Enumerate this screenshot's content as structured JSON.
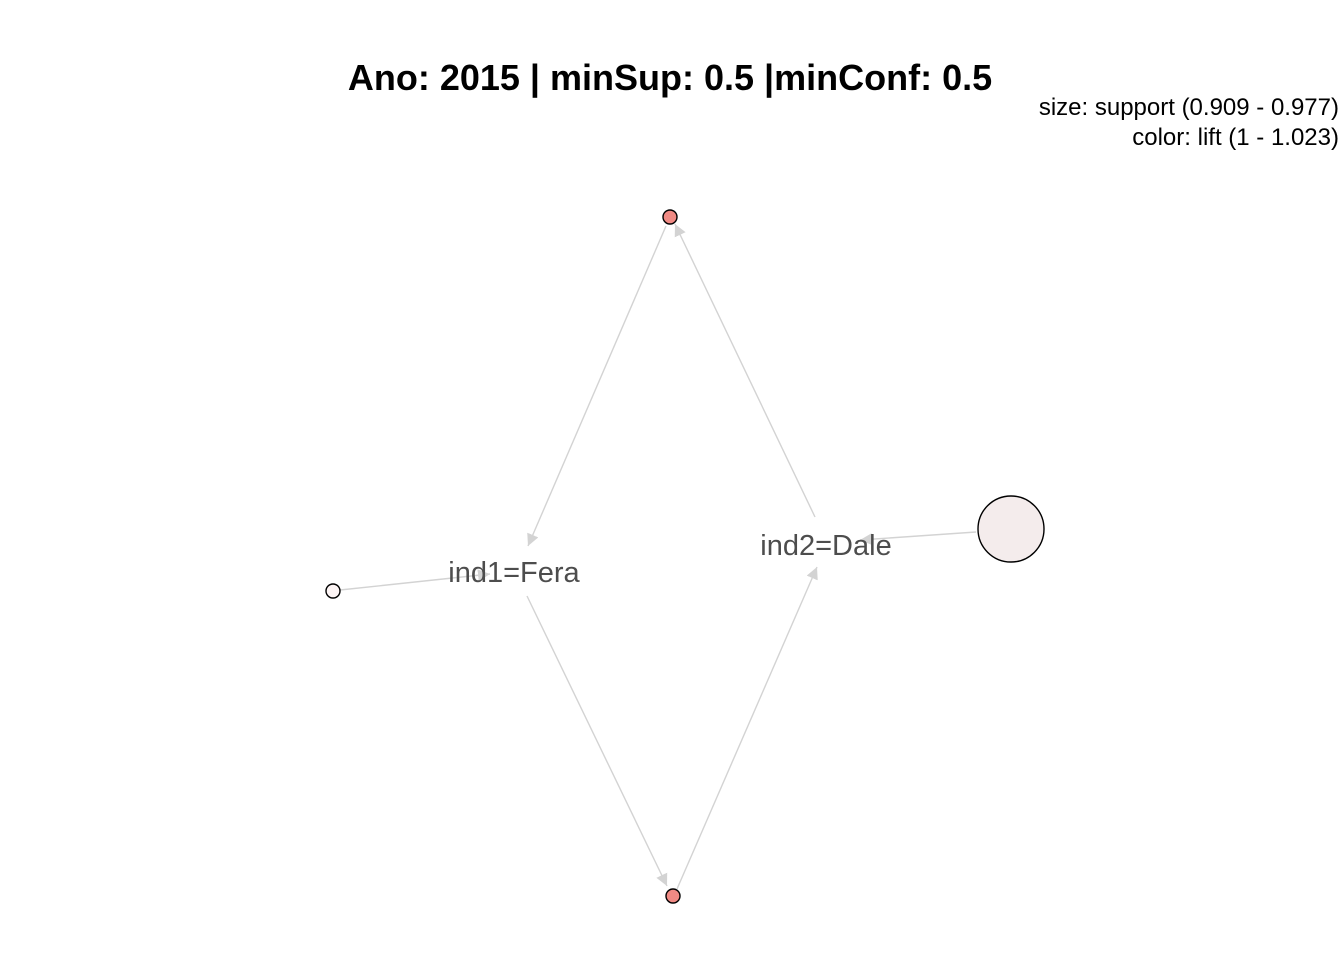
{
  "title": "Ano: 2015 | minSup: 0.5 |minConf: 0.5",
  "legend": {
    "size": "size: support (0.909 - 0.977)",
    "color": "color: lift (1 - 1.023)"
  },
  "items": [
    {
      "id": "fera",
      "label": "ind1=Fera"
    },
    {
      "id": "dale",
      "label": "ind2=Dale"
    }
  ],
  "rules": [
    {
      "id": "rule-top",
      "color": "#f08a84",
      "size_level": "small"
    },
    {
      "id": "rule-bottom",
      "color": "#f08a84",
      "size_level": "small"
    },
    {
      "id": "rule-left",
      "color": "#fdf5f5",
      "size_level": "small"
    },
    {
      "id": "rule-right",
      "color": "#f4ecec",
      "size_level": "large"
    }
  ],
  "edge_color": "#d3d3d3"
}
